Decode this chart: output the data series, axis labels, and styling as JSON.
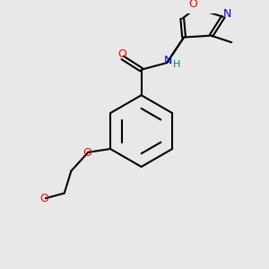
{
  "background_color": "#e8e8e8",
  "bond_color": "#000000",
  "figsize": [
    3.0,
    3.0
  ],
  "dpi": 100,
  "atom_colors": {
    "O": "#ff0000",
    "N": "#0000cc",
    "NH": "#008080",
    "C": "#000000"
  },
  "lw": 1.5,
  "xlim": [
    0,
    300
  ],
  "ylim": [
    0,
    300
  ]
}
